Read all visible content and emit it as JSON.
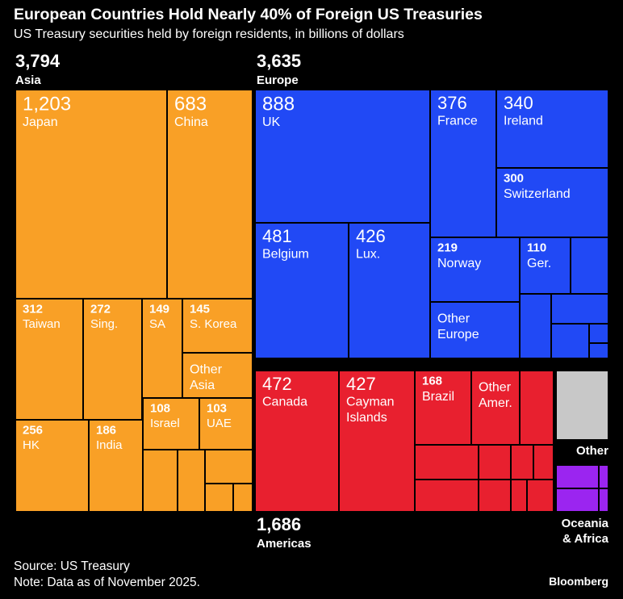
{
  "title": "European Countries Hold Nearly 40% of Foreign US Treasuries",
  "subtitle": "US Treasury securities held by foreign residents, in billions of dollars",
  "source": "Source: US Treasury",
  "note": "Note: Data as of November 2025.",
  "brand": "Bloomberg",
  "colors": {
    "background": "#000000",
    "Asia": "#F9A026",
    "Europe": "#2149F5",
    "Americas": "#E8202F",
    "Other": "#C8C8C8",
    "Oceania & Africa": "#9B25F0"
  },
  "chart_data": {
    "type": "treemap",
    "regions": [
      {
        "name": "Asia",
        "value": "3,794",
        "children": [
          {
            "name": "Japan",
            "value": "1,203"
          },
          {
            "name": "China",
            "value": "683"
          },
          {
            "name": "Taiwan",
            "value": "312"
          },
          {
            "name": "Sing.",
            "value": "272"
          },
          {
            "name": "SA",
            "value": "149"
          },
          {
            "name": "S. Korea",
            "value": "145"
          },
          {
            "name": "Other Asia",
            "value": ""
          },
          {
            "name": "HK",
            "value": "256"
          },
          {
            "name": "India",
            "value": "186"
          },
          {
            "name": "Israel",
            "value": "108"
          },
          {
            "name": "UAE",
            "value": "103"
          }
        ]
      },
      {
        "name": "Europe",
        "value": "3,635",
        "children": [
          {
            "name": "UK",
            "value": "888"
          },
          {
            "name": "France",
            "value": "376"
          },
          {
            "name": "Ireland",
            "value": "340"
          },
          {
            "name": "Switzerland",
            "value": "300"
          },
          {
            "name": "Belgium",
            "value": "481"
          },
          {
            "name": "Lux.",
            "value": "426"
          },
          {
            "name": "Norway",
            "value": "219"
          },
          {
            "name": "Ger.",
            "value": "110"
          },
          {
            "name": "Other Europe",
            "value": ""
          }
        ]
      },
      {
        "name": "Americas",
        "value": "1,686",
        "children": [
          {
            "name": "Canada",
            "value": "472"
          },
          {
            "name": "Cayman Islands",
            "value": "427"
          },
          {
            "name": "Brazil",
            "value": "168"
          },
          {
            "name": "Other Amer.",
            "value": ""
          }
        ]
      },
      {
        "name": "Other",
        "value": "",
        "children": []
      },
      {
        "name": "Oceania & Africa",
        "value": "",
        "children": []
      }
    ]
  }
}
